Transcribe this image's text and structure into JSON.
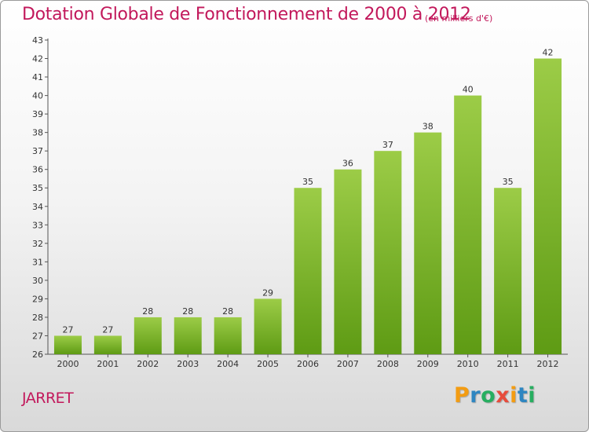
{
  "header": {
    "title": "Dotation Globale de Fonctionnement de 2000 à 2012",
    "unit": "(en milliers d'€)"
  },
  "commune": "JARRET",
  "logo": {
    "letters": [
      "P",
      "r",
      "o",
      "x",
      "i",
      "t",
      "i"
    ],
    "colors": [
      "#f39c12",
      "#2e86c1",
      "#27ae60",
      "#e74c3c",
      "#f39c12",
      "#2e86c1",
      "#27ae60"
    ]
  },
  "chart_data": {
    "type": "bar",
    "title": "Dotation Globale de Fonctionnement de 2000 à 2012",
    "subtitle": "(en milliers d'€)",
    "categories": [
      "2000",
      "2001",
      "2002",
      "2003",
      "2004",
      "2005",
      "2006",
      "2007",
      "2008",
      "2009",
      "2010",
      "2011",
      "2012"
    ],
    "values": [
      27,
      27,
      28,
      28,
      28,
      29,
      35,
      36,
      37,
      38,
      40,
      35,
      42
    ],
    "xlabel": "",
    "ylabel": "",
    "ylim": [
      26,
      43
    ],
    "yticks": [
      26,
      27,
      28,
      29,
      30,
      31,
      32,
      33,
      34,
      35,
      36,
      37,
      38,
      39,
      40,
      41,
      42,
      43
    ],
    "grid": false,
    "legend": "none",
    "bar_color_top": "#9ccc47",
    "bar_color_bottom": "#5e9b14"
  }
}
